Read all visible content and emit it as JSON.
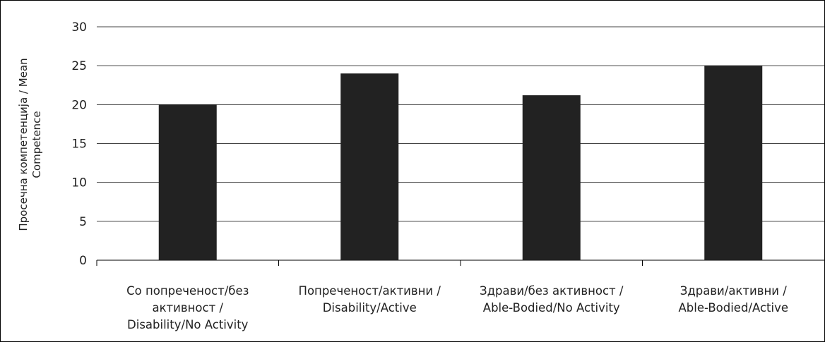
{
  "chart_data": {
    "type": "bar",
    "ylabel": "Просечна компетенција / Mean Competence",
    "ylim": [
      0,
      30
    ],
    "yticks": [
      "0",
      "5",
      "10",
      "15",
      "20",
      "25",
      "30"
    ],
    "categories": [
      "Со попреченост/без активност / Disability/No Activity",
      "Попреченост/активни / Disability/Active",
      "Здрави/без активност / Able-Bodied/No Activity",
      "Здрави/активни / Able-Bodied/Active"
    ],
    "category_lines": [
      [
        "Со попреченост/без",
        "активност /",
        "Disability/No Activity"
      ],
      [
        "Попреченост/активни /",
        "Disability/Active"
      ],
      [
        "Здрави/без активност /",
        "Able-Bodied/No Activity"
      ],
      [
        "Здрави/активни /",
        "Able-Bodied/Active"
      ]
    ],
    "values": [
      20.0,
      24.0,
      21.2,
      25.0
    ],
    "grid": true,
    "legend": false,
    "colors": {
      "bar": "#222222",
      "grid": "#444444",
      "axis": "#000000",
      "text": "#222222"
    }
  }
}
